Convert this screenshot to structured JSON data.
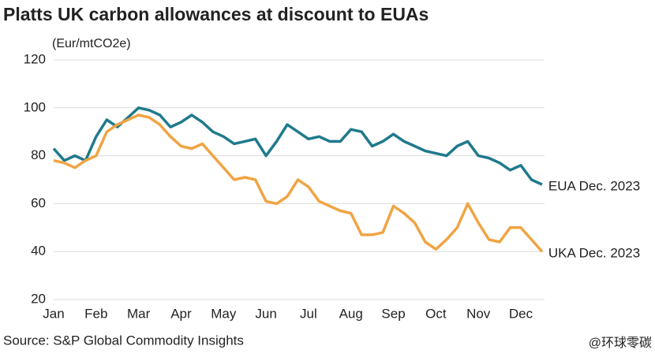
{
  "chart_data": {
    "type": "line",
    "title": "Platts UK carbon allowances at discount to EUAs",
    "y_label": "(Eur/mtCO2e)",
    "source": "Source: S&P Global Commodity Insights",
    "watermark": "@环球零碳",
    "categories": [
      "Jan",
      null,
      null,
      null,
      "Feb",
      null,
      null,
      null,
      "Mar",
      null,
      null,
      null,
      "Apr",
      null,
      null,
      null,
      "May",
      null,
      null,
      null,
      "Jun",
      null,
      null,
      null,
      "Jul",
      null,
      null,
      null,
      "Aug",
      null,
      null,
      null,
      "Sep",
      null,
      null,
      null,
      "Oct",
      null,
      null,
      null,
      "Nov",
      null,
      null,
      null,
      "Dec",
      null,
      null
    ],
    "series": [
      {
        "name": "EUA Dec. 2023",
        "color": "#1f7a8c",
        "values": [
          83,
          78,
          80,
          78,
          88,
          95,
          92,
          96,
          100,
          99,
          97,
          92,
          94,
          97,
          94,
          90,
          88,
          85,
          86,
          87,
          80,
          86,
          93,
          90,
          87,
          88,
          86,
          86,
          91,
          90,
          84,
          86,
          89,
          86,
          84,
          82,
          81,
          80,
          84,
          86,
          80,
          79,
          77,
          74,
          76,
          70,
          68
        ]
      },
      {
        "name": "UKA Dec. 2023",
        "color": "#f0a443",
        "values": [
          78,
          77,
          75,
          78,
          80,
          90,
          93,
          95,
          97,
          96,
          93,
          88,
          84,
          83,
          85,
          80,
          75,
          70,
          71,
          70,
          61,
          60,
          63,
          70,
          67,
          61,
          59,
          57,
          56,
          47,
          47,
          48,
          59,
          56,
          52,
          44,
          41,
          45,
          50,
          60,
          52,
          45,
          44,
          50,
          50,
          45,
          40
        ]
      }
    ],
    "ylim": [
      20,
      120
    ],
    "yticks": [
      20,
      40,
      60,
      80,
      100,
      120
    ],
    "grid": true
  }
}
